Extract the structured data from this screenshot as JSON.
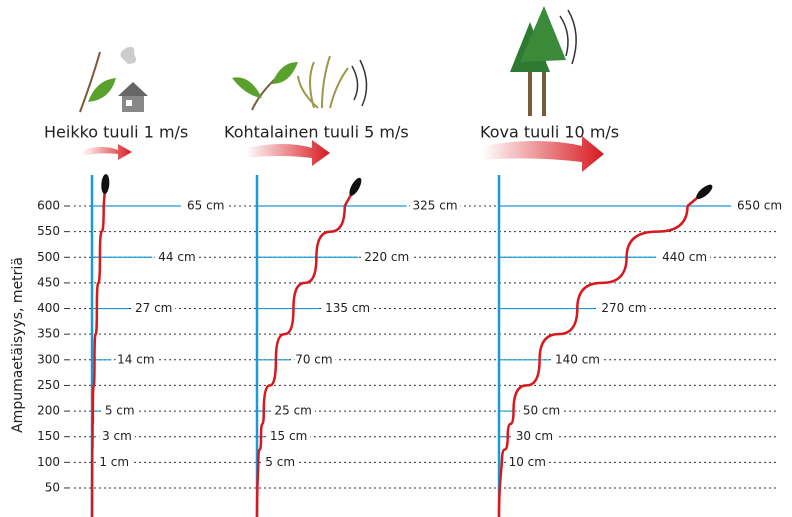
{
  "chart_data": {
    "type": "drift",
    "y_label": "Ampumaetäisyys, metriä",
    "ylim": [
      0,
      640
    ],
    "yticks": [
      50,
      100,
      150,
      200,
      250,
      300,
      350,
      400,
      450,
      500,
      550,
      600
    ],
    "grid": true,
    "distances": [
      100,
      150,
      200,
      300,
      400,
      500,
      600
    ],
    "axis_color": "#1a9ad6",
    "trajectory_color": "#d7191f",
    "series": [
      {
        "name": "Heikko tuuli 1 m/s",
        "values": [
          1,
          3,
          5,
          14,
          27,
          44,
          65
        ],
        "value_labels": [
          "1 cm",
          "3 cm",
          "5 cm",
          "14 cm",
          "27 cm",
          "44 cm",
          "65 cm"
        ]
      },
      {
        "name": "Kohtalainen tuuli 5 m/s",
        "values": [
          5,
          15,
          25,
          70,
          135,
          220,
          325
        ],
        "value_labels": [
          "5 cm",
          "15 cm",
          "25 cm",
          "70 cm",
          "135 cm",
          "220 cm",
          "325 cm"
        ]
      },
      {
        "name": "Kova tuuli 10 m/s",
        "values": [
          10,
          30,
          50,
          140,
          270,
          440,
          650
        ],
        "value_labels": [
          "10 cm",
          "30 cm",
          "50 cm",
          "140 cm",
          "270 cm",
          "440 cm",
          "650 cm"
        ]
      }
    ]
  }
}
